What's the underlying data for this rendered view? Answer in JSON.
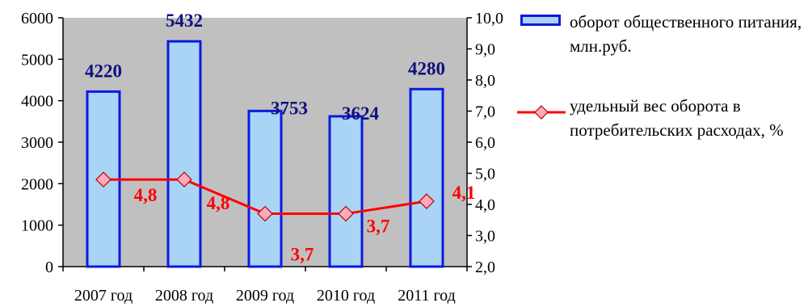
{
  "chart_data": {
    "type": "bar+line",
    "categories": [
      "2007 год",
      "2008 год",
      "2009 год",
      "2010 год",
      "2011 год"
    ],
    "series": [
      {
        "name": "оборот общественного питания, млн.руб.",
        "type": "bar",
        "axis": "left",
        "values": [
          4220,
          5432,
          3753,
          3624,
          4280
        ],
        "labels": [
          "4220",
          "5432",
          "3753",
          "3624",
          "4280"
        ]
      },
      {
        "name": "удельный вес оборота в потребительских расходах, %",
        "type": "line",
        "axis": "right",
        "values": [
          4.8,
          4.8,
          3.7,
          3.7,
          4.1
        ],
        "labels": [
          "4,8",
          "4,8",
          "3,7",
          "3,7",
          "4,1"
        ]
      }
    ],
    "y_left": {
      "min": 0,
      "max": 6000,
      "ticks": [
        "0",
        "1000",
        "2000",
        "3000",
        "4000",
        "5000",
        "6000"
      ]
    },
    "y_right": {
      "min": 2.0,
      "max": 10.0,
      "ticks": [
        "2,0",
        "3,0",
        "4,0",
        "5,0",
        "6,0",
        "7,0",
        "8,0",
        "9,0",
        "10,0"
      ]
    },
    "legend_position": "right",
    "grid": false,
    "plot_background": "#c0c0c0",
    "colors": {
      "bar_fill": "#a9d4f5",
      "bar_border": "#0c1adf",
      "bar_label": "#10107e",
      "line": "#ff0000",
      "marker_fill": "#ffaabb",
      "line_label": "#ff0000"
    }
  },
  "legend": {
    "bar_label": "оборот общественного питания, млн.руб.",
    "line_label": "удельный вес оборота в потребительских расходах, %"
  }
}
